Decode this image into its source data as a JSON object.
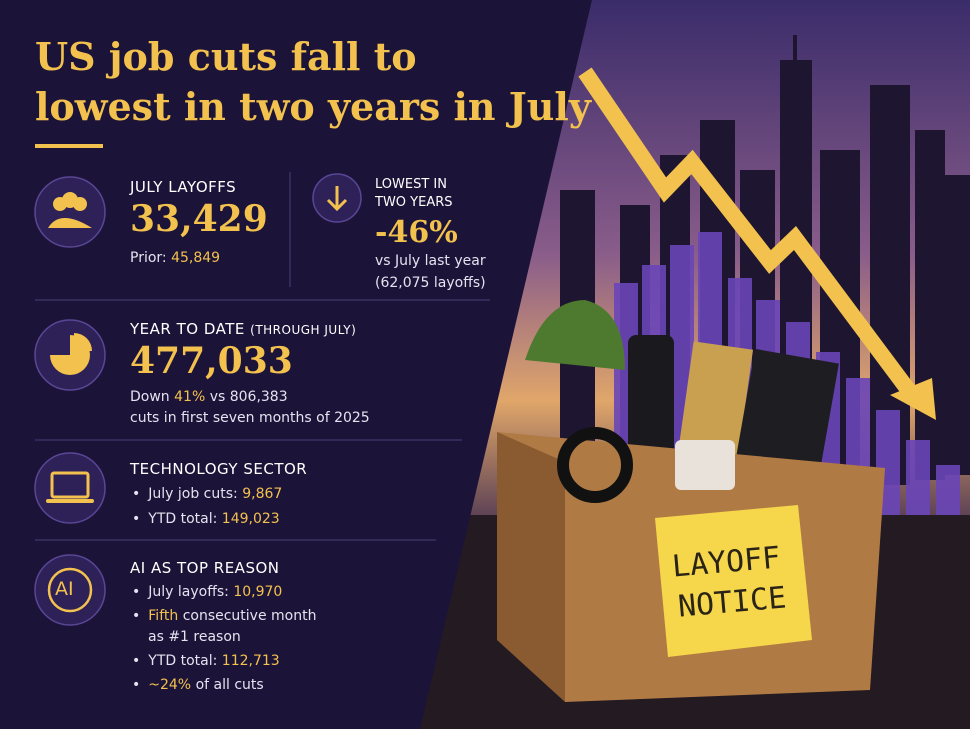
{
  "title_lines": [
    "US job cuts fall to",
    "lowest in two years in July"
  ],
  "stats": [
    {
      "label": "JULY LAYOFFS",
      "value": "33,429",
      "prior_label": "Prior:",
      "prior_value": "45,849"
    },
    {
      "label_lines": [
        "LOWEST IN",
        "TWO YEARS"
      ],
      "value": "-46%",
      "note_lines": [
        "vs July last year",
        "(62,075 layoffs)"
      ]
    }
  ],
  "ytd": {
    "label": "YEAR TO DATE",
    "label_note": "(THROUGH JULY)",
    "value": "477,033",
    "line1": [
      "Down",
      "41%",
      "vs 806,383"
    ],
    "line2": "cuts in first seven months of 2025"
  },
  "tech": {
    "label": "TECHNOLOGY SECTOR",
    "bullets": [
      {
        "label": "July job cuts:",
        "value": "9,867"
      },
      {
        "label": "YTD total:",
        "value": "149,023"
      }
    ]
  },
  "ai": {
    "label": "AI AS TOP REASON",
    "icon": "AI",
    "bullets": [
      {
        "label": "July layoffs:",
        "value": "10,970"
      },
      {
        "highlight": "Fifth",
        "text_lines": [
          "consecutive month",
          "as #1 reason"
        ]
      },
      {
        "label": "YTD total:",
        "value": "112,713"
      },
      {
        "highlight": "~24%",
        "text": "of all cuts"
      }
    ]
  },
  "note": {
    "lines": [
      "LAYOFF",
      "NOTICE"
    ]
  }
}
